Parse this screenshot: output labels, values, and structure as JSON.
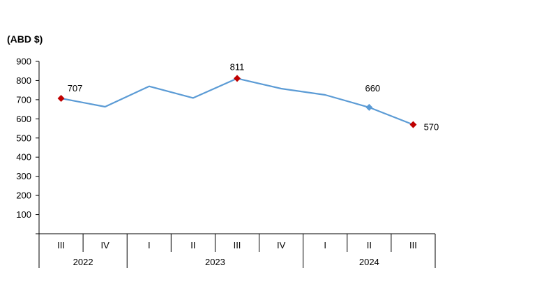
{
  "chart_data": {
    "type": "line",
    "unit_label": "(ABD $)",
    "ylim": [
      0,
      900
    ],
    "y_ticks": [
      100,
      200,
      300,
      400,
      500,
      600,
      700,
      800,
      900
    ],
    "categories": [
      "III",
      "IV",
      "I",
      "II",
      "III",
      "IV",
      "I",
      "II",
      "III"
    ],
    "year_groups": [
      {
        "year": "2022",
        "count": 2
      },
      {
        "year": "2023",
        "count": 4
      },
      {
        "year": "2024",
        "count": 3
      }
    ],
    "series": [
      {
        "values": [
          707,
          663,
          770,
          709,
          811,
          758,
          725,
          660,
          570
        ],
        "color": "#5b9bd5"
      }
    ],
    "annotations": [
      {
        "index": 0,
        "label": "707",
        "marker_color": "#c00000"
      },
      {
        "index": 4,
        "label": "811",
        "marker_color": "#c00000"
      },
      {
        "index": 7,
        "label": "660",
        "marker_color": "#5b9bd5"
      },
      {
        "index": 8,
        "label": "570",
        "marker_color": "#c00000"
      }
    ],
    "grid": false
  }
}
